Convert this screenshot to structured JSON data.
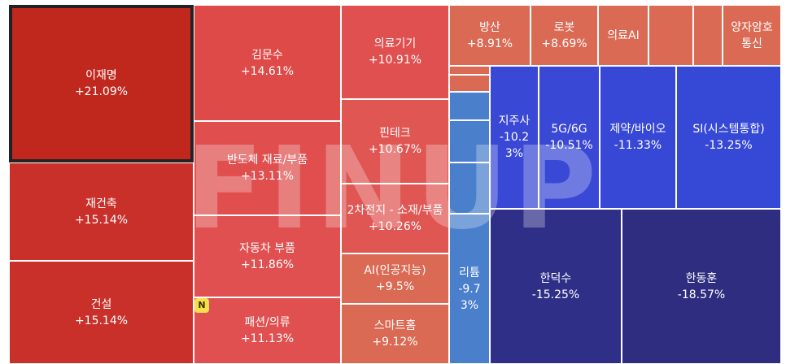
{
  "watermark": "FINUP",
  "news_badge": "N",
  "colors": {
    "strong_up": "#c0281e",
    "up": "#e05050",
    "up_light": "#db6a54",
    "down_light": "#4a7fcc",
    "down": "#3a48d6",
    "down_strong": "#2e2d80"
  },
  "tiles": [
    {
      "name": "이재명",
      "change": "+21.09%"
    },
    {
      "name": "재건축",
      "change": "+15.14%"
    },
    {
      "name": "건설",
      "change": "+15.14%"
    },
    {
      "name": "김문수",
      "change": "+14.61%"
    },
    {
      "name": "반도체 재료/부품",
      "change": "+13.11%"
    },
    {
      "name": "자동차 부품",
      "change": "+11.86%"
    },
    {
      "name": "패션/의류",
      "change": "+11.13%"
    },
    {
      "name": "의료기기",
      "change": "+10.91%"
    },
    {
      "name": "핀테크",
      "change": "+10.67%"
    },
    {
      "name": "2차전지 - 소재/부품",
      "change": "+10.26%"
    },
    {
      "name": "AI(인공지능)",
      "change": "+9.5%"
    },
    {
      "name": "스마트홈",
      "change": "+9.12%"
    },
    {
      "name": "방산",
      "change": "+8.91%"
    },
    {
      "name": "로봇",
      "change": "+8.69%"
    },
    {
      "name": "의료AI",
      "change": ""
    },
    {
      "name": "",
      "change": ""
    },
    {
      "name": "",
      "change": ""
    },
    {
      "name": "양자암호통신",
      "change": ""
    },
    {
      "name": "",
      "change": ""
    },
    {
      "name": "",
      "change": ""
    },
    {
      "name": "",
      "change": ""
    },
    {
      "name": "",
      "change": ""
    },
    {
      "name": "",
      "change": ""
    },
    {
      "name": "리튬",
      "change": "-9.73%"
    },
    {
      "name": "지주사",
      "change": "-10.23%"
    },
    {
      "name": "5G/6G",
      "change": "-10.51%"
    },
    {
      "name": "제약/바이오",
      "change": "-11.33%"
    },
    {
      "name": "SI(시스템통합)",
      "change": "-13.25%"
    },
    {
      "name": "한덕수",
      "change": "-15.25%"
    },
    {
      "name": "한동훈",
      "change": "-18.57%"
    }
  ]
}
